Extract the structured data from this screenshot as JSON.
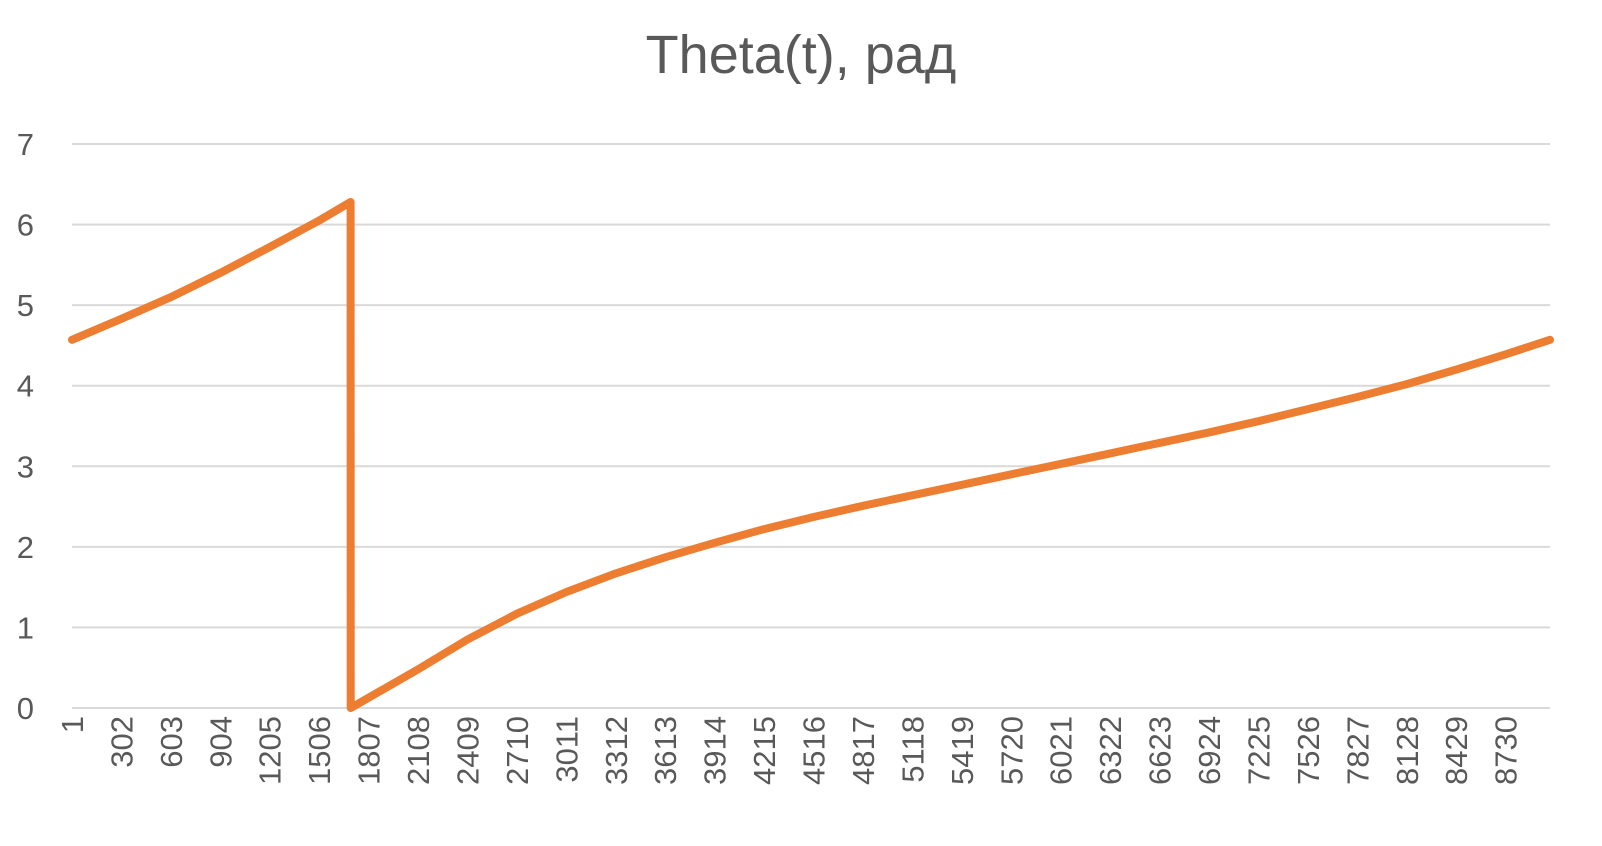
{
  "chart_data": {
    "type": "line",
    "title": "Theta(t), рад",
    "xlabel": "",
    "ylabel": "",
    "ylim": [
      0,
      7
    ],
    "y_ticks": [
      "0",
      "1",
      "2",
      "3",
      "4",
      "5",
      "6",
      "7"
    ],
    "x_ticks": [
      "1",
      "302",
      "603",
      "904",
      "1205",
      "1506",
      "1807",
      "2108",
      "2409",
      "2710",
      "3011",
      "3312",
      "3613",
      "3914",
      "4215",
      "4516",
      "4817",
      "5118",
      "5419",
      "5720",
      "6021",
      "6322",
      "6623",
      "6924",
      "7225",
      "7526",
      "7827",
      "8128",
      "8429",
      "8730"
    ],
    "xlim": [
      1,
      9000
    ],
    "grid": true,
    "legend": "none",
    "series": [
      {
        "color": "#ED7D31",
        "x": [
          1,
          302,
          603,
          904,
          1205,
          1506,
          1697,
          1698,
          2108,
          2409,
          2710,
          3011,
          3312,
          3613,
          3914,
          4215,
          4516,
          4817,
          5118,
          5419,
          5720,
          6021,
          6322,
          6623,
          6924,
          7225,
          7526,
          7827,
          8128,
          8429,
          8730,
          9000
        ],
        "y": [
          4.57,
          4.83,
          5.1,
          5.4,
          5.72,
          6.05,
          6.28,
          0.0,
          0.48,
          0.85,
          1.17,
          1.44,
          1.67,
          1.87,
          2.05,
          2.22,
          2.37,
          2.51,
          2.64,
          2.77,
          2.9,
          3.03,
          3.16,
          3.29,
          3.42,
          3.56,
          3.71,
          3.86,
          4.02,
          4.2,
          4.39,
          4.57
        ]
      }
    ]
  }
}
